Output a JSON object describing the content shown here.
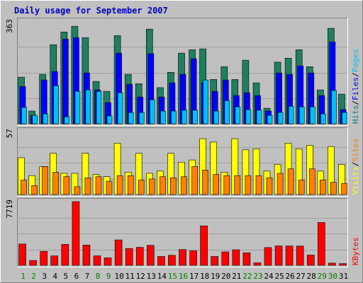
{
  "chart_data": {
    "type": "bar",
    "title": "Daily usage for September 2007",
    "categories": [
      "1",
      "2",
      "3",
      "4",
      "5",
      "6",
      "7",
      "8",
      "9",
      "10",
      "11",
      "12",
      "13",
      "14",
      "15",
      "16",
      "17",
      "18",
      "19",
      "20",
      "21",
      "22",
      "23",
      "24",
      "25",
      "26",
      "27",
      "28",
      "29",
      "30",
      "31"
    ],
    "weekend_days": [
      "1",
      "2",
      "8",
      "9",
      "15",
      "16",
      "22",
      "23",
      "29",
      "30"
    ],
    "panels": [
      {
        "name": "Hits/Files/Pages",
        "ymax_label": "363",
        "ylim": [
          0,
          363
        ],
        "axis_labels": [
          {
            "text": "Hits",
            "color": "#008080"
          },
          {
            "text": "Files",
            "color": "#0000ff"
          },
          {
            "text": "Pages",
            "color": "#00bfff"
          }
        ],
        "series": [
          {
            "name": "Hits",
            "color": "#1e8060",
            "values": [
              165,
              45,
              175,
              280,
              325,
              345,
              305,
              150,
              115,
              312,
              175,
              142,
              335,
              128,
              182,
              250,
              262,
              265,
              157,
              202,
              157,
              225,
              145,
              55,
              218,
              232,
              262,
              202,
              120,
              338,
              105
            ]
          },
          {
            "name": "Files",
            "color": "#0000ff",
            "values": [
              132,
              30,
              155,
              185,
              300,
              305,
              180,
              120,
              75,
              250,
              140,
              95,
              248,
              95,
              145,
              175,
              230,
              145,
              115,
              155,
              100,
              110,
              100,
              45,
              180,
              175,
              205,
              180,
              100,
              290,
              50
            ]
          },
          {
            "name": "Pages",
            "color": "#00bfff",
            "values": [
              58,
              30,
              35,
              135,
              25,
              115,
              120,
              115,
              28,
              110,
              40,
              40,
              85,
              45,
              45,
              48,
              48,
              155,
              45,
              82,
              60,
              50,
              48,
              30,
              40,
              62,
              60,
              60,
              35,
              118,
              40
            ]
          }
        ]
      },
      {
        "name": "Visits/Sites",
        "ymax_label": "57",
        "ylim": [
          0,
          57
        ],
        "axis_labels": [
          {
            "text": "Visits",
            "color": "#ffff00"
          },
          {
            "text": "Sites",
            "color": "#ff8000"
          }
        ],
        "series": [
          {
            "name": "Visits",
            "color": "#ffff00",
            "values": [
              33,
              17,
              25,
              37,
              19,
              19,
              37,
              18,
              16,
              46,
              20,
              37,
              19,
              21,
              37,
              29,
              31,
              50,
              47,
              20,
              50,
              40,
              41,
              21,
              27,
              46,
              41,
              44,
              21,
              43,
              27
            ]
          },
          {
            "name": "Sites",
            "color": "#ff8000",
            "values": [
              13,
              8,
              25,
              20,
              16,
              7,
              15,
              16,
              12,
              17,
              17,
              13,
              14,
              16,
              15,
              16,
              25,
              22,
              18,
              17,
              17,
              17,
              17,
              15,
              19,
              23,
              13,
              23,
              13,
              11,
              10
            ]
          }
        ]
      },
      {
        "name": "KBytes",
        "ymax_label": "7719",
        "ylim": [
          0,
          7719
        ],
        "axis_labels": [
          {
            "text": "KBytes",
            "color": "#ff0000"
          }
        ],
        "series": [
          {
            "name": "KBytes",
            "color": "#ff0000",
            "values": [
              2580,
              580,
              1700,
              1140,
              2540,
              7719,
              2460,
              1150,
              910,
              3080,
              2040,
              2180,
              2420,
              1070,
              1220,
              1910,
              1760,
              4790,
              1070,
              1630,
              1890,
              1520,
              300,
              2150,
              2350,
              2340,
              2330,
              1240,
              5190,
              270,
              210
            ]
          }
        ]
      }
    ]
  }
}
